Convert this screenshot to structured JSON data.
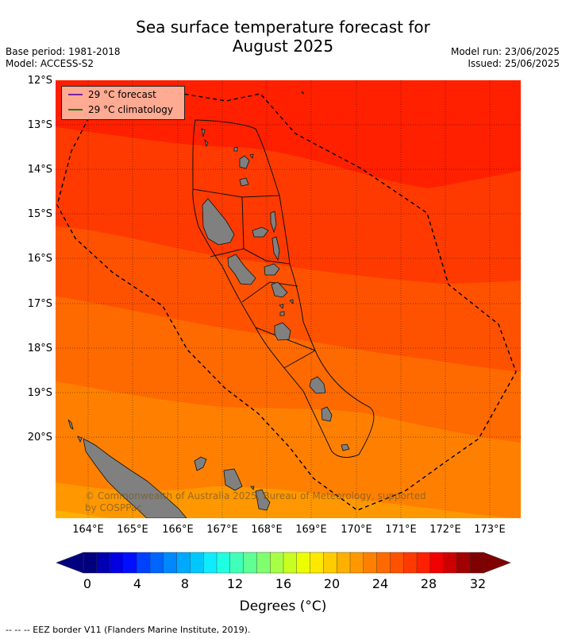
{
  "title": {
    "line1": "Sea surface temperature forecast for",
    "line2": "August 2025"
  },
  "meta_left": {
    "base_period": "Base period: 1981-2018",
    "model": "Model: ACCESS-S2"
  },
  "meta_right": {
    "model_run": "Model run: 23/06/2025",
    "issued": "Issued: 25/06/2025"
  },
  "map": {
    "lat_labels": [
      "12°S",
      "13°S",
      "14°S",
      "15°S",
      "16°S",
      "17°S",
      "18°S",
      "19°S",
      "20°S"
    ],
    "lon_labels": [
      "164°E",
      "165°E",
      "166°E",
      "167°E",
      "168°E",
      "169°E",
      "170°E",
      "171°E",
      "172°E",
      "173°E"
    ],
    "lat_range": [
      -21.9,
      -12.0
    ],
    "lon_range": [
      163.3,
      173.7
    ],
    "grid": true,
    "colors": {
      "land": "#808080",
      "band_29_plus": "#ff2000",
      "band_28_29": "#ff3a00",
      "band_27_28": "#ff5200",
      "band_26_27": "#ff6a00",
      "band_25_26": "#ff8000",
      "band_24_25": "#ff9800",
      "band_23_24": "#ffb000",
      "eez_border": "#000000"
    }
  },
  "legend": {
    "forecast": {
      "label": "29 °C  forecast",
      "color": "#7b1fa2"
    },
    "climatology": {
      "label": "29 °C  climatology",
      "color": "#1f7a1f"
    }
  },
  "copyright": {
    "line1": "© Commonwealth of Australia 2025, Bureau of Meteorology, supported",
    "line2": "by COSPPac"
  },
  "colorbar": {
    "ticks": [
      "0",
      "4",
      "8",
      "12",
      "16",
      "20",
      "24",
      "28",
      "32"
    ],
    "label": "Degrees (°C)",
    "min": 0,
    "max": 32,
    "colors": [
      "#00007f",
      "#0000b2",
      "#0000e0",
      "#0010ff",
      "#0040ff",
      "#0064ff",
      "#0088ff",
      "#00a8ff",
      "#00c8ff",
      "#10ecff",
      "#20ffe0",
      "#40ffb8",
      "#60ff94",
      "#80ff70",
      "#a8ff48",
      "#c8ff20",
      "#ecff00",
      "#ffe800",
      "#ffcc00",
      "#ffb000",
      "#ff9800",
      "#ff8000",
      "#ff6a00",
      "#ff5200",
      "#ff3a00",
      "#ff2000",
      "#f00000",
      "#cc0000",
      "#a00000",
      "#800000"
    ]
  },
  "footer": "--  --  -- EEZ border V11 (Flanders Marine Institute, 2019)."
}
